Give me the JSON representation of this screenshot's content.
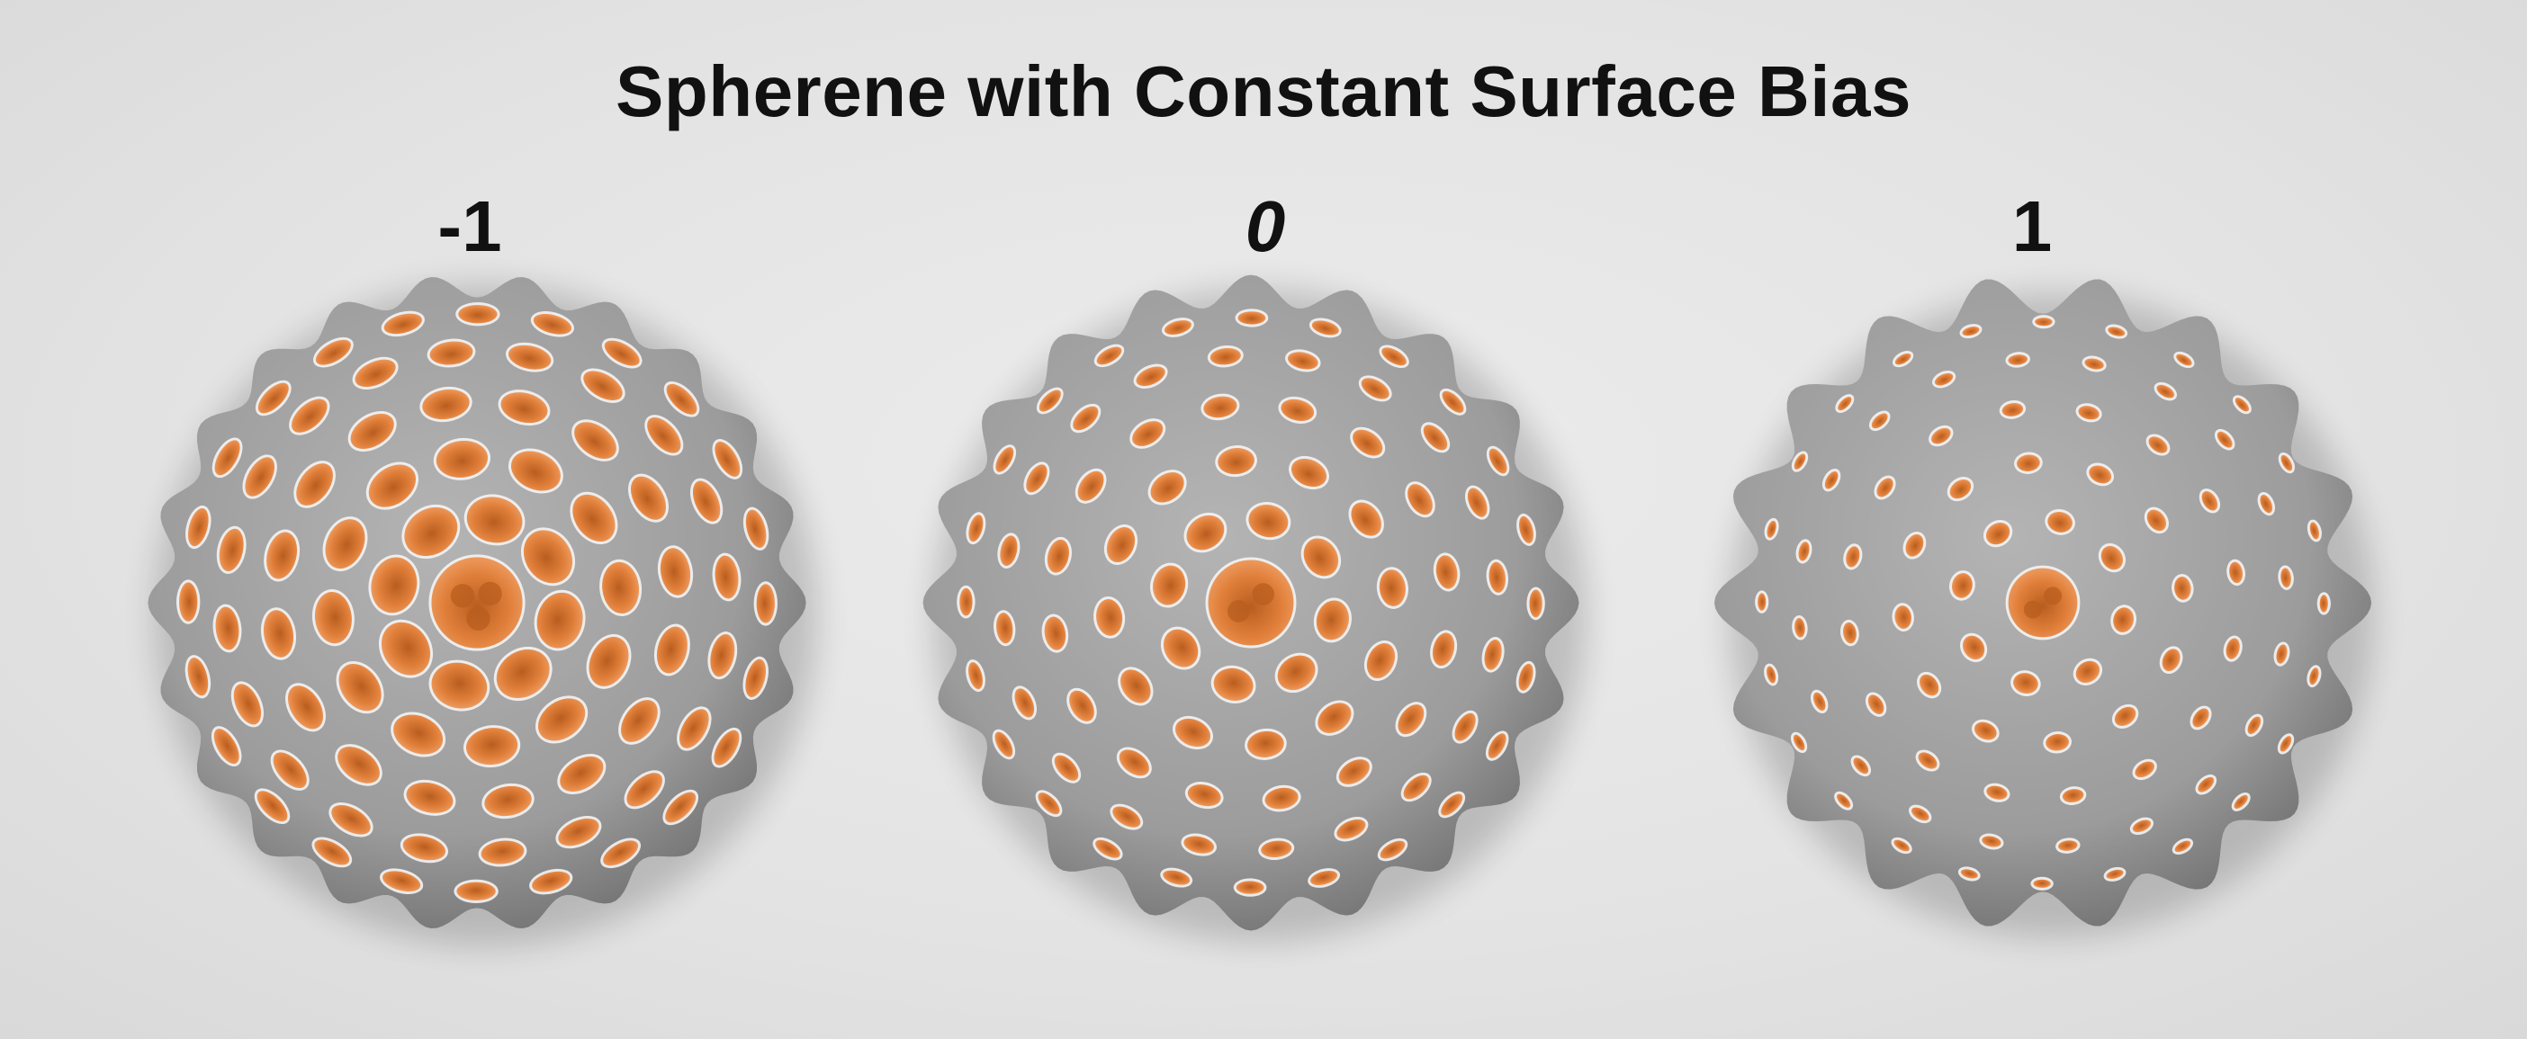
{
  "title": "Spherene with Constant Surface Bias",
  "panels": [
    {
      "label": "-1",
      "italic": false,
      "bias": -1
    },
    {
      "label": "0",
      "italic": true,
      "bias": 0
    },
    {
      "label": "1",
      "italic": false,
      "bias": 1
    }
  ],
  "colors": {
    "background": "#e6e6e6",
    "lattice": "#9c9c9c",
    "lattice_shadow": "#6f6f6f",
    "hole_interior": "#e07f3a",
    "hole_dark": "#b85d1f",
    "rim": "#f4f4f4"
  }
}
